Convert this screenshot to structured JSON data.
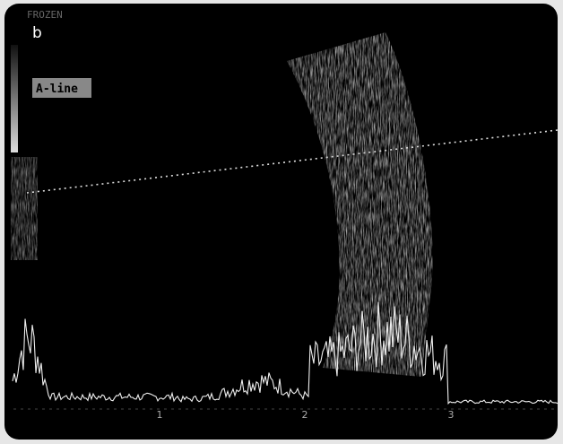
{
  "status_text": "FROZEN",
  "panel_label": "b",
  "mode_label": "A-line",
  "scale_labels": [
    "1",
    "2",
    "3"
  ]
}
